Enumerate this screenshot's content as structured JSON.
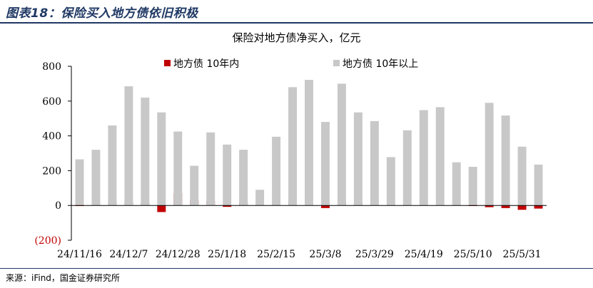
{
  "figure_label": "图表18：保险买入地方债依旧积极",
  "source": "来源：iFind，国金证券研究所",
  "chart_data": {
    "type": "bar",
    "title": "保险对地方债净买入，亿元",
    "xlabel": "",
    "ylabel": "",
    "ylim": [
      -200,
      800
    ],
    "yticks": [
      800,
      600,
      400,
      200,
      0,
      -200
    ],
    "ytick_labels": [
      "800",
      "600",
      "400",
      "200",
      "0",
      "(200)"
    ],
    "xtick_labels": [
      "24/11/16",
      "24/12/7",
      "24/12/28",
      "25/1/18",
      "25/2/15",
      "25/3/8",
      "25/3/29",
      "25/4/19",
      "25/5/10",
      "25/5/31"
    ],
    "xtick_every": 3,
    "grid": false,
    "legend_position": "top",
    "colors": {
      "within10": "#c00000",
      "over10": "#c8c8c8"
    },
    "categories": [
      "24/11/16",
      "24/11/23",
      "24/11/30",
      "24/12/7",
      "24/12/14",
      "24/12/21",
      "24/12/28",
      "25/1/4",
      "25/1/11",
      "25/1/18",
      "25/1/25",
      "25/2/1",
      "25/2/8",
      "25/2/15",
      "25/2/22",
      "25/3/1",
      "25/3/8",
      "25/3/15",
      "25/3/22",
      "25/3/29",
      "25/4/5",
      "25/4/12",
      "25/4/19",
      "25/4/26",
      "25/5/3",
      "25/5/10",
      "25/5/17",
      "25/5/24",
      "25/5/31"
    ],
    "series": [
      {
        "name": "地方债 10年内",
        "key": "within10",
        "values": [
          -3,
          6,
          20,
          20,
          14,
          -38,
          70,
          30,
          25,
          -8,
          15,
          4,
          8,
          20,
          2,
          -15,
          18,
          15,
          5,
          2,
          4,
          2,
          3,
          2,
          0,
          -10,
          -15,
          -25,
          -18
        ]
      },
      {
        "name": "地方债 10年以上",
        "key": "over10",
        "values": [
          265,
          320,
          460,
          685,
          620,
          535,
          425,
          228,
          420,
          350,
          320,
          90,
          395,
          680,
          722,
          480,
          700,
          535,
          485,
          278,
          432,
          548,
          565,
          248,
          222,
          590,
          517,
          338,
          235
        ]
      }
    ]
  }
}
